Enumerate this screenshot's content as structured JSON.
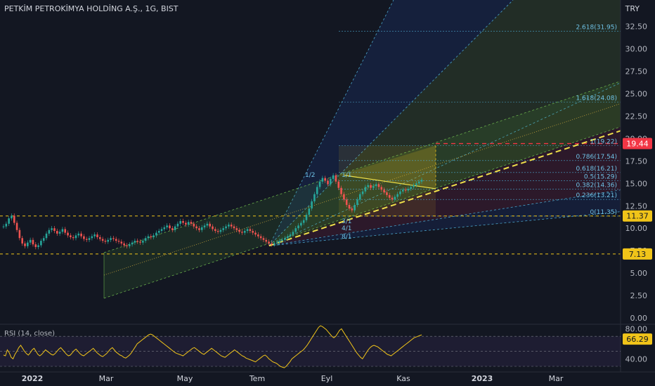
{
  "header": {
    "symbol_title": "PETKİM PETROKİMYA HOLDİNG A.Ş., 1G, BIST",
    "currency": "TRY"
  },
  "rsi": {
    "title": "RSI (14, close)",
    "value_label": "66.29",
    "ticks": [
      "80.00",
      "40.00"
    ],
    "series": [
      45,
      44,
      52,
      48,
      42,
      40,
      46,
      50,
      55,
      58,
      54,
      50,
      47,
      45,
      48,
      52,
      54,
      50,
      46,
      44,
      46,
      49,
      52,
      50,
      48,
      46,
      45,
      47,
      50,
      53,
      55,
      52,
      49,
      46,
      44,
      45,
      48,
      51,
      53,
      50,
      47,
      45,
      44,
      46,
      48,
      50,
      52,
      54,
      51,
      48,
      46,
      44,
      43,
      45,
      47,
      50,
      53,
      55,
      52,
      49,
      47,
      45,
      44,
      42,
      41,
      43,
      45,
      48,
      52,
      56,
      60,
      62,
      64,
      66,
      68,
      70,
      72,
      73,
      72,
      70,
      68,
      66,
      64,
      62,
      60,
      58,
      56,
      54,
      52,
      50,
      48,
      47,
      46,
      45,
      44,
      46,
      48,
      50,
      52,
      54,
      55,
      53,
      51,
      49,
      47,
      46,
      48,
      50,
      52,
      54,
      52,
      50,
      48,
      46,
      44,
      43,
      42,
      44,
      46,
      48,
      50,
      52,
      50,
      48,
      46,
      44,
      43,
      41,
      40,
      39,
      38,
      37,
      36,
      38,
      40,
      42,
      44,
      45,
      43,
      40,
      38,
      36,
      35,
      34,
      32,
      30,
      29,
      28,
      30,
      33,
      36,
      40,
      42,
      44,
      46,
      48,
      50,
      52,
      55,
      58,
      62,
      66,
      70,
      74,
      78,
      82,
      84,
      83,
      81,
      79,
      76,
      73,
      70,
      68,
      70,
      74,
      78,
      80,
      76,
      72,
      68,
      64,
      60,
      56,
      52,
      48,
      45,
      42,
      40,
      44,
      48,
      52,
      55,
      57,
      58,
      57,
      56,
      54,
      52,
      50,
      48,
      46,
      45,
      44,
      46,
      48,
      50,
      52,
      54,
      56,
      58,
      60,
      62,
      64,
      66,
      68,
      69,
      70,
      71,
      72
    ]
  },
  "price_axis": {
    "ticks": [
      "32.50",
      "30.00",
      "27.50",
      "25.00",
      "22.50",
      "20.00",
      "17.50",
      "15.00",
      "12.50",
      "10.00",
      "7.50",
      "5.00",
      "2.50",
      "0.00"
    ],
    "price_labels": [
      {
        "text": "19.44",
        "color": "#f23645"
      },
      {
        "text": "11.37",
        "color": "#f0c419"
      },
      {
        "text": "7.13",
        "color": "#f0c419"
      }
    ]
  },
  "time_axis": {
    "labels": [
      "2022",
      "Mar",
      "May",
      "Tem",
      "Eyl",
      "Kas",
      "2023",
      "Mar"
    ]
  },
  "fib_levels": [
    {
      "label": "2.618(31.95)",
      "value": 31.95
    },
    {
      "label": "1.618(24.08)",
      "value": 24.08
    },
    {
      "label": "1(19.22)",
      "value": 19.22
    },
    {
      "label": "0.786(17.54)",
      "value": 17.54
    },
    {
      "label": "0.618(16.21)",
      "value": 16.21
    },
    {
      "label": "0.5(15.29)",
      "value": 15.29
    },
    {
      "label": "0.382(14.36)",
      "value": 14.36
    },
    {
      "label": "0.236(13.21)",
      "value": 13.21
    },
    {
      "label": "0(11.35)",
      "value": 11.35
    }
  ],
  "gann_labels": [
    "1/2",
    "1/1",
    "3/1",
    "4/1",
    "8/1"
  ],
  "chart_data": {
    "type": "line",
    "title": "PETKİM PETROKİMYA HOLDİNG A.Ş., 1G, BIST",
    "ylim": [
      0,
      34
    ],
    "x_ticks": [
      "2022",
      "Mar",
      "May",
      "Tem",
      "Eyl",
      "Kas",
      "2023",
      "Mar"
    ],
    "y_ticks": [
      32.5,
      30,
      27.5,
      25,
      22.5,
      20,
      17.5,
      15,
      12.5,
      10,
      7.5,
      5,
      2.5,
      0
    ],
    "horizontal_levels": [
      11.37,
      7.13,
      19.44
    ],
    "series": [
      {
        "values": [
          10.2,
          10.5,
          11.1,
          11.4,
          10.6,
          9.8,
          8.9,
          8.3,
          8.0,
          8.4,
          8.7,
          8.2,
          7.9,
          8.1,
          8.6,
          8.9,
          9.4,
          9.8,
          10.0,
          9.7,
          9.4,
          9.6,
          9.9,
          9.5,
          9.2,
          9.0,
          8.9,
          9.2,
          9.4,
          9.1,
          8.8,
          8.7,
          8.9,
          9.1,
          9.3,
          9.0,
          8.8,
          8.6,
          8.5,
          8.7,
          8.9,
          8.8,
          8.6,
          8.5,
          8.3,
          8.1,
          8.0,
          8.2,
          8.4,
          8.6,
          8.5,
          8.4,
          8.6,
          8.9,
          9.1,
          9.0,
          9.2,
          9.5,
          9.7,
          9.9,
          10.1,
          10.3,
          10.0,
          9.8,
          10.2,
          10.5,
          10.8,
          10.6,
          10.4,
          10.7,
          10.5,
          10.2,
          10.0,
          9.8,
          10.1,
          10.3,
          10.5,
          10.2,
          9.9,
          9.7,
          9.6,
          9.8,
          10.0,
          10.2,
          10.4,
          10.2,
          10.0,
          9.8,
          9.6,
          9.5,
          9.7,
          9.9,
          9.7,
          9.5,
          9.3,
          9.1,
          8.9,
          8.7,
          8.5,
          8.3,
          8.2,
          8.3,
          8.4,
          8.6,
          8.7,
          8.9,
          9.1,
          9.3,
          9.6,
          10.0,
          10.3,
          10.6,
          10.9,
          11.5,
          12.2,
          13.0,
          13.8,
          14.6,
          15.2,
          15.6,
          15.3,
          14.9,
          15.5,
          15.9,
          15.2,
          14.5,
          13.8,
          13.2,
          12.6,
          12.2,
          12.0,
          12.6,
          13.2,
          13.8,
          14.1,
          14.6,
          14.8,
          14.5,
          14.7,
          14.9,
          14.6,
          14.3,
          14.0,
          13.7,
          13.4,
          13.2,
          13.5,
          13.8,
          14.1,
          14.3,
          14.2,
          14.4,
          14.6,
          14.8,
          15.0,
          15.2,
          15.4
        ]
      }
    ]
  }
}
